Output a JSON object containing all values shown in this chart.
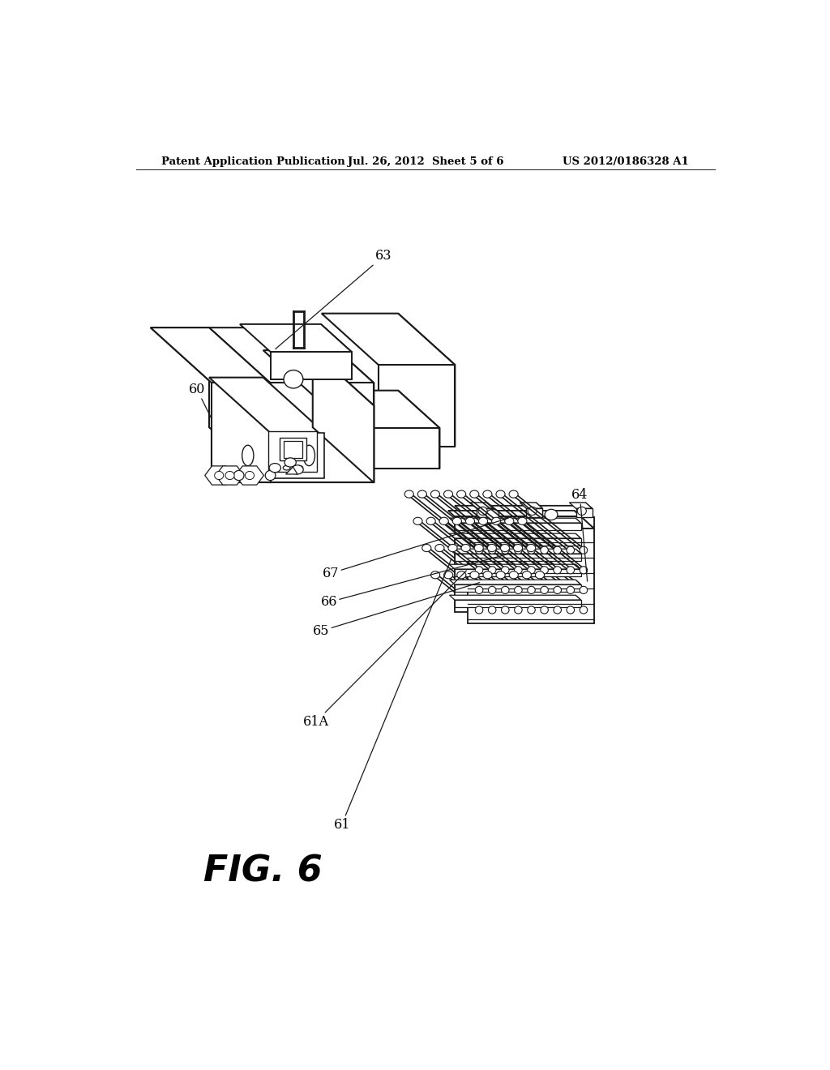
{
  "header_left": "Patent Application Publication",
  "header_mid": "Jul. 26, 2012  Sheet 5 of 6",
  "header_right": "US 2012/0186328 A1",
  "fig_label": "FIG. 6",
  "bg_color": "#ffffff",
  "lc": "#1a1a1a",
  "proj": {
    "ox": 0.44,
    "oy": 0.615,
    "sx": 0.155,
    "sy": 0.075,
    "sz": 0.115
  }
}
